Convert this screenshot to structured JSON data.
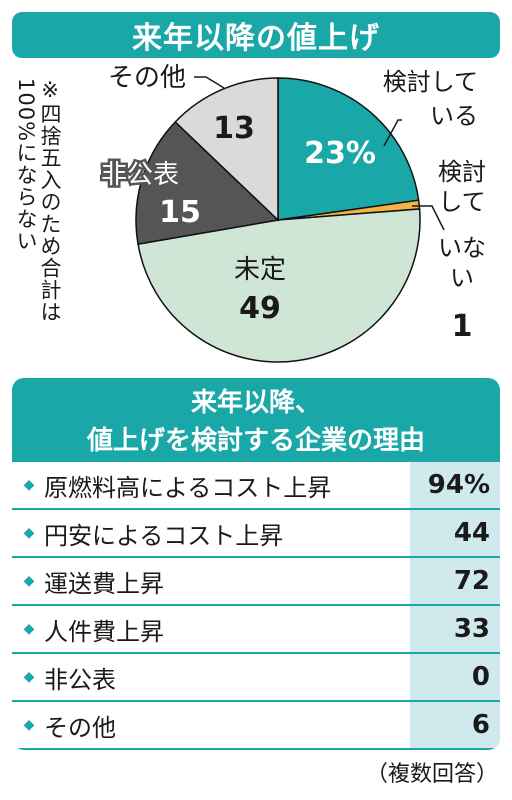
{
  "title": "来年以降の値上げ",
  "note": "※四捨五入のため合計は100%にならない",
  "chart_data": [
    {
      "type": "pie",
      "title": "来年以降の値上げ",
      "unit": "%",
      "slices": [
        {
          "label": "検討している",
          "value": 23,
          "display": "23%",
          "color": "#1aa7a8"
        },
        {
          "label": "検討していない",
          "value": 1,
          "display": "1",
          "color": "#f4b342"
        },
        {
          "label": "未定",
          "value": 49,
          "display": "49",
          "color": "#cfe5d6"
        },
        {
          "label": "非公表",
          "value": 15,
          "display": "15",
          "color": "#555555"
        },
        {
          "label": "その他",
          "value": 13,
          "display": "13",
          "color": "#dadada"
        }
      ]
    },
    {
      "type": "table",
      "title": "来年以降、値上げを検討する企業の理由",
      "unit": "%",
      "rows": [
        {
          "label": "原燃料高によるコスト上昇",
          "value": 94,
          "display": "94%"
        },
        {
          "label": "円安によるコスト上昇",
          "value": 44,
          "display": "44"
        },
        {
          "label": "運送費上昇",
          "value": 72,
          "display": "72"
        },
        {
          "label": "人件費上昇",
          "value": 33,
          "display": "33"
        },
        {
          "label": "非公表",
          "value": 0,
          "display": "0"
        },
        {
          "label": "その他",
          "value": 6,
          "display": "6"
        }
      ]
    }
  ],
  "reasons": {
    "header_line1": "来年以降、",
    "header_line2": "値上げを検討する企業の理由"
  },
  "footnote": "（複数回答）",
  "colors": {
    "accent": "#1aa7a8",
    "value_cell": "#cfe9ec"
  }
}
